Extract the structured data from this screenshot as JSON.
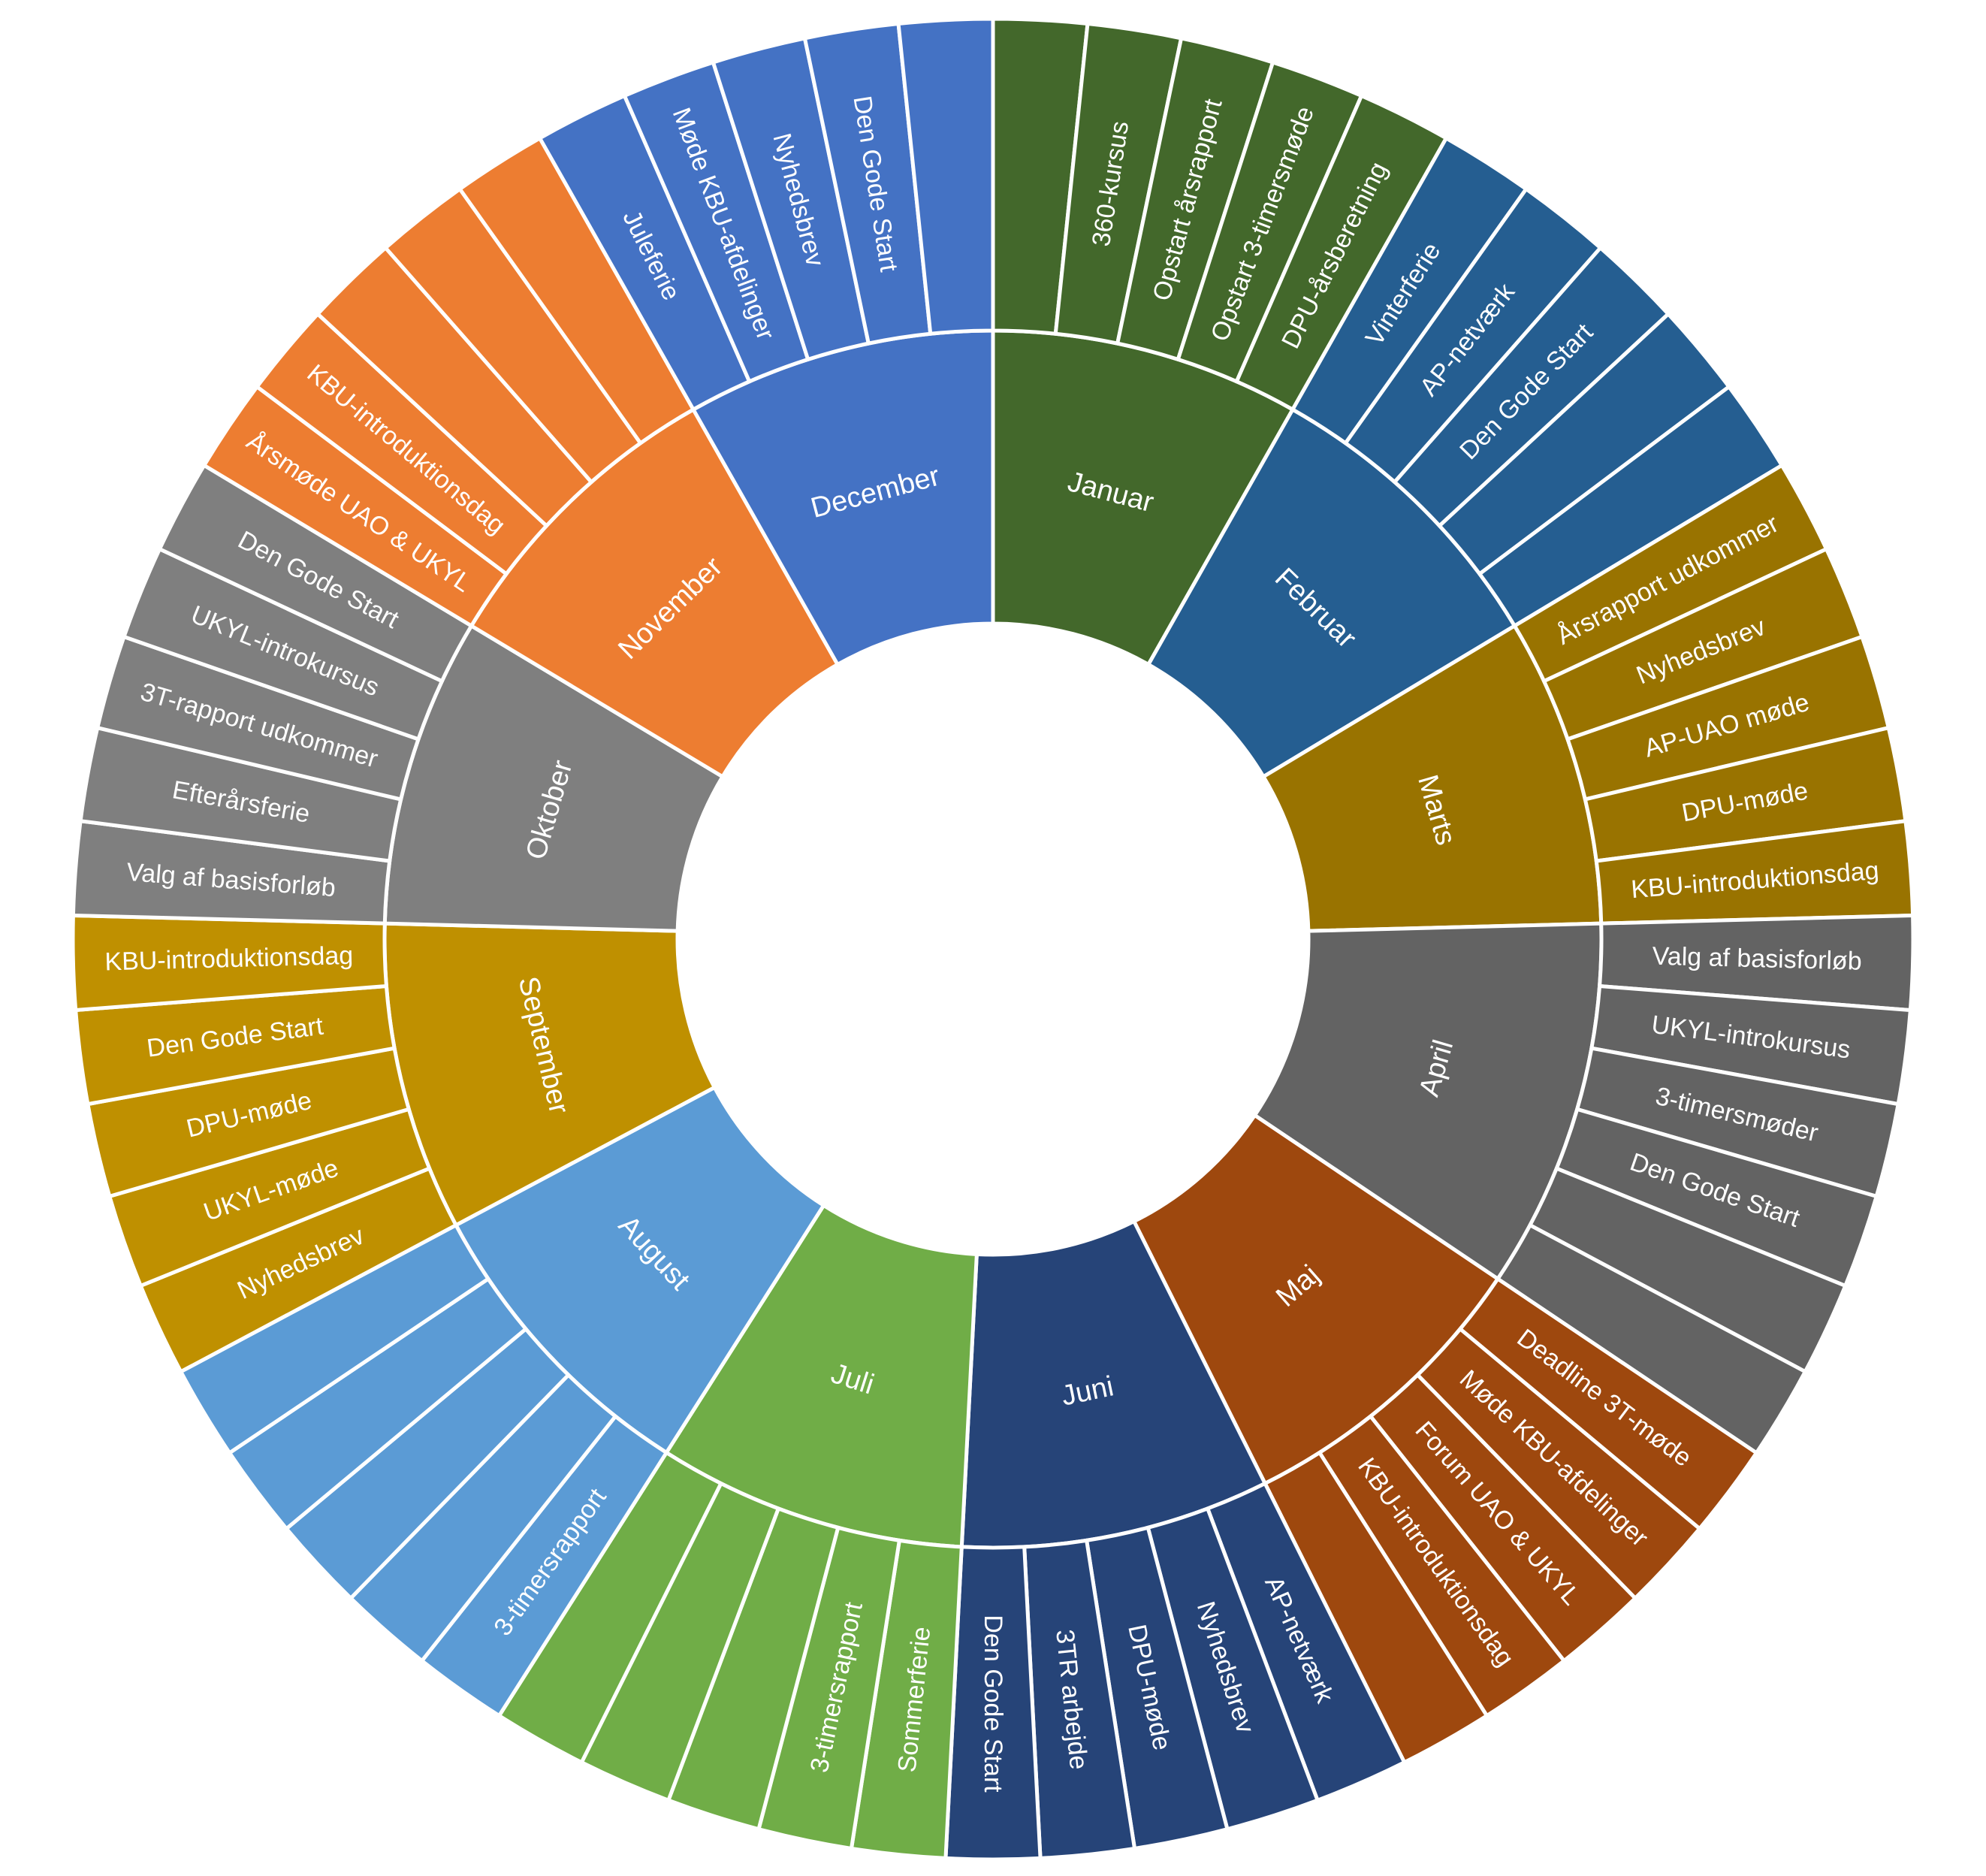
{
  "chart_data": {
    "type": "sunburst",
    "months": [
      {
        "name": "Januar",
        "color": "#43682B",
        "events": [
          "",
          "360-kursus",
          "Opstart årsrapport",
          "Opstart 3-timersmøde",
          "DPU-årsberetning"
        ]
      },
      {
        "name": "Februar",
        "color": "#255E91",
        "events": [
          "Vinterferie",
          "AP-netværk",
          "Den Gode Start",
          "",
          ""
        ]
      },
      {
        "name": "Marts",
        "color": "#997300",
        "events": [
          "Årsrapport udkommer",
          "Nyhedsbrev",
          "AP-UAO møde",
          "DPU-møde",
          "KBU-introduktionsdag"
        ]
      },
      {
        "name": "April",
        "color": "#636363",
        "events": [
          "Valg af basisforløb",
          "UKYL-introkursus",
          "3-timersmøder",
          "Den Gode Start",
          "",
          ""
        ]
      },
      {
        "name": "Maj",
        "color": "#9E480E",
        "events": [
          "Deadline 3T-møde",
          "Møde KBU-afdelinger",
          "Forum UAO & UKYL",
          "KBU-introduktionsdag",
          ""
        ]
      },
      {
        "name": "Juni",
        "color": "#264478",
        "events": [
          "AP-netværk",
          "Nyhedsbrev",
          "DPU-møde",
          "3TR arbejde",
          "Den Gode Start"
        ]
      },
      {
        "name": "Juli",
        "color": "#70AD47",
        "events": [
          "Sommerferie",
          "3-timersrapport",
          "",
          "",
          ""
        ]
      },
      {
        "name": "August",
        "color": "#5B9BD5",
        "events": [
          "3-timersrapport",
          "",
          "",
          "",
          ""
        ]
      },
      {
        "name": "September",
        "color": "#BF9000",
        "events": [
          "Nyhedsbrev",
          "UKYL-møde",
          "DPU-møde",
          "Den Gode Start",
          "KBU-introduktionsdag"
        ]
      },
      {
        "name": "Oktober",
        "color": "#7F7F7F",
        "events": [
          "Valg af basisforløb",
          "Efterårsferie",
          "3T-rapport udkommer",
          "UKYL-introkursus",
          "Den Gode Start"
        ]
      },
      {
        "name": "November",
        "color": "#ED7D31",
        "events": [
          "Årsmøde UAO & UKYL",
          "KBU-introduktionsdag",
          "",
          "",
          ""
        ]
      },
      {
        "name": "December",
        "color": "#4472C4",
        "events": [
          "Juleferie",
          "Møde KBU-afdelinger",
          "Nyhedsbrev",
          "Den Gode Start",
          ""
        ]
      }
    ]
  }
}
